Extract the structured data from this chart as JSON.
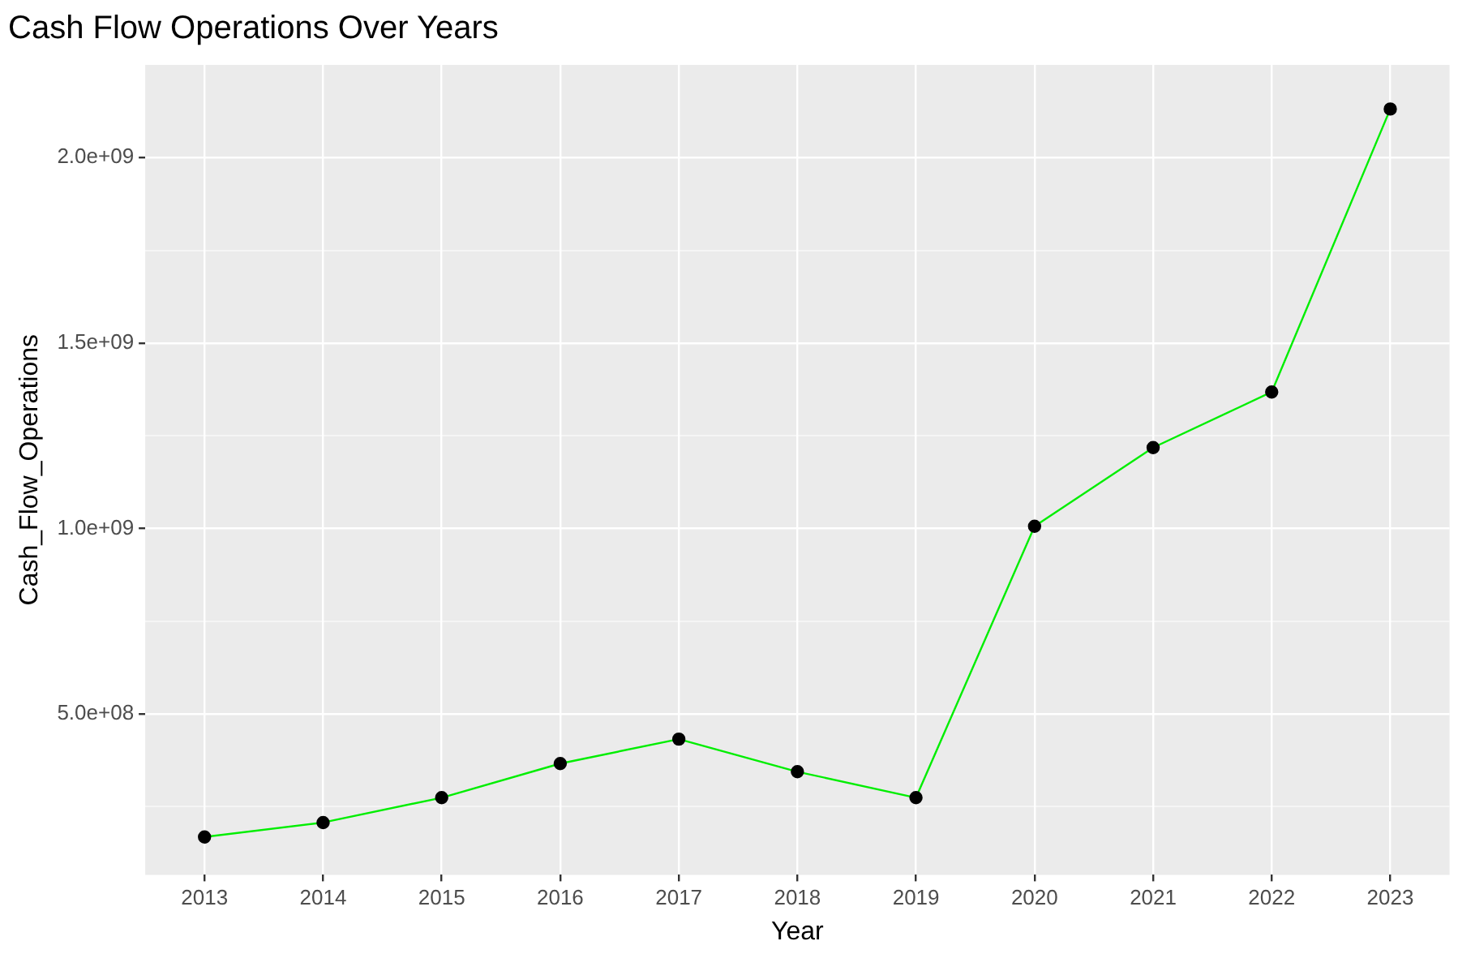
{
  "chart_data": {
    "type": "line",
    "title": "Cash Flow Operations Over Years",
    "xlabel": "Year",
    "ylabel": "Cash_Flow_Operations",
    "categories": [
      "2013",
      "2014",
      "2015",
      "2016",
      "2017",
      "2018",
      "2019",
      "2020",
      "2021",
      "2022",
      "2023"
    ],
    "series": [
      {
        "color": "#00ee00",
        "values": [
          168000000,
          207000000,
          274000000,
          366000000,
          432000000,
          344000000,
          274000000,
          1006000000,
          1218000000,
          1368000000,
          2131000000
        ]
      }
    ],
    "ylim": [
      66000000,
      2250000000
    ],
    "yticks": [
      {
        "value": 250000000,
        "label": null
      },
      {
        "value": 500000000,
        "label": "5.0e+08"
      },
      {
        "value": 750000000,
        "label": null
      },
      {
        "value": 1000000000,
        "label": "1.0e+09"
      },
      {
        "value": 1250000000,
        "label": null
      },
      {
        "value": 1500000000,
        "label": "1.5e+09"
      },
      {
        "value": 1750000000,
        "label": null
      },
      {
        "value": 2000000000,
        "label": "2.0e+09"
      }
    ],
    "grid": true,
    "legend": false,
    "marker": "circle",
    "line_style": "solid"
  }
}
